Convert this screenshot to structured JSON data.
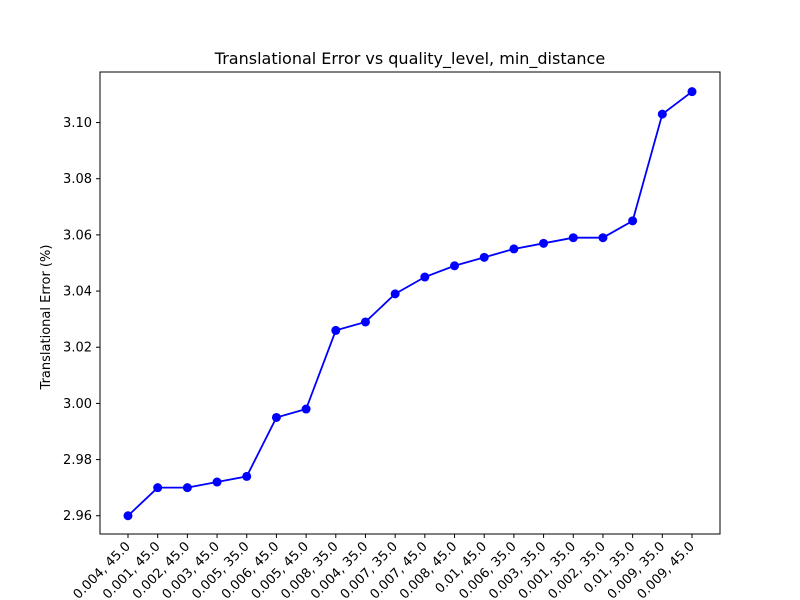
{
  "chart_data": {
    "type": "line",
    "title": "Translational Error vs quality_level, min_distance",
    "xlabel": "",
    "ylabel": "Translational Error (%)",
    "ylim": [
      2.9535,
      3.118
    ],
    "y_ticks": [
      2.96,
      2.98,
      3.0,
      3.02,
      3.04,
      3.06,
      3.08,
      3.1
    ],
    "y_tick_labels": [
      "2.96",
      "2.98",
      "3.00",
      "3.02",
      "3.04",
      "3.06",
      "3.08",
      "3.10"
    ],
    "grid": false,
    "series_color": "#0000ff",
    "categories": [
      "0.004, 45.0",
      "0.001, 45.0",
      "0.002, 45.0",
      "0.003, 45.0",
      "0.005, 35.0",
      "0.006, 45.0",
      "0.005, 45.0",
      "0.008, 35.0",
      "0.004, 35.0",
      "0.007, 35.0",
      "0.007, 45.0",
      "0.008, 45.0",
      "0.01, 45.0",
      "0.006, 35.0",
      "0.003, 35.0",
      "0.001, 35.0",
      "0.002, 35.0",
      "0.01, 35.0",
      "0.009, 35.0",
      "0.009, 45.0"
    ],
    "values": [
      2.96,
      2.97,
      2.97,
      2.972,
      2.974,
      2.995,
      2.998,
      3.026,
      3.029,
      3.039,
      3.045,
      3.049,
      3.052,
      3.055,
      3.057,
      3.059,
      3.059,
      3.065,
      3.103,
      3.111
    ]
  }
}
